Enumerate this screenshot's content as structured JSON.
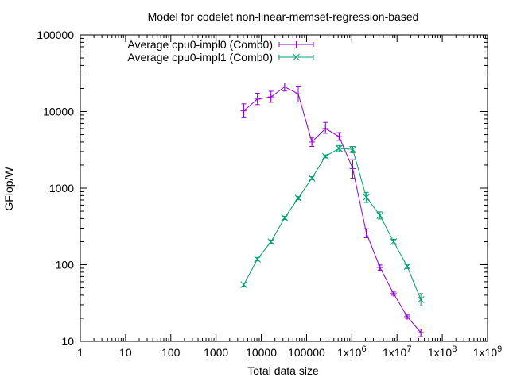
{
  "chart_data": {
    "type": "line",
    "title": "Model for codelet non-linear-memset-regression-based",
    "xlabel": "Total data size",
    "ylabel": "GFlop/W",
    "x_scale": "log",
    "y_scale": "log",
    "xlim": [
      1,
      1000000000
    ],
    "ylim": [
      10,
      100000
    ],
    "grid": false,
    "legend_position": "top-left",
    "x_ticks": [
      {
        "value": 1,
        "label": "1"
      },
      {
        "value": 10,
        "label": "10"
      },
      {
        "value": 100,
        "label": "100"
      },
      {
        "value": 1000,
        "label": "1000"
      },
      {
        "value": 10000,
        "label": "10000"
      },
      {
        "value": 100000,
        "label": "100000"
      },
      {
        "value": 1000000,
        "label": "1x10",
        "exp": "6"
      },
      {
        "value": 10000000,
        "label": "1x10",
        "exp": "7"
      },
      {
        "value": 100000000,
        "label": "1x10",
        "exp": "8"
      },
      {
        "value": 1000000000,
        "label": "1x10",
        "exp": "9"
      }
    ],
    "y_ticks": [
      {
        "value": 10,
        "label": "10"
      },
      {
        "value": 100,
        "label": "100"
      },
      {
        "value": 1000,
        "label": "1000"
      },
      {
        "value": 10000,
        "label": "10000"
      },
      {
        "value": 100000,
        "label": "100000"
      }
    ],
    "series": [
      {
        "name": "Average cpu0-impl0 (Comb0)",
        "color": "#9400d3",
        "marker": "plus",
        "points": [
          {
            "x": 4096,
            "y": 10200,
            "lo": 8300,
            "hi": 12600
          },
          {
            "x": 8192,
            "y": 14500,
            "lo": 12300,
            "hi": 17300
          },
          {
            "x": 16384,
            "y": 15500,
            "lo": 13200,
            "hi": 18400
          },
          {
            "x": 32768,
            "y": 21000,
            "lo": 18500,
            "hi": 23600
          },
          {
            "x": 65536,
            "y": 17000,
            "lo": 13300,
            "hi": 21500
          },
          {
            "x": 131072,
            "y": 4000,
            "lo": 3500,
            "hi": 4600
          },
          {
            "x": 262144,
            "y": 6000,
            "lo": 5200,
            "hi": 7200
          },
          {
            "x": 524288,
            "y": 4700,
            "lo": 4200,
            "hi": 5300
          },
          {
            "x": 1048576,
            "y": 1800,
            "lo": 1350,
            "hi": 2350
          },
          {
            "x": 2097152,
            "y": 260,
            "lo": 225,
            "hi": 295
          },
          {
            "x": 4194304,
            "y": 92,
            "lo": 85,
            "hi": 99
          },
          {
            "x": 8388608,
            "y": 42,
            "lo": 40,
            "hi": 44
          },
          {
            "x": 16777216,
            "y": 21,
            "lo": 20,
            "hi": 22
          },
          {
            "x": 33554432,
            "y": 13,
            "lo": 11.5,
            "hi": 14.5
          }
        ]
      },
      {
        "name": "Average cpu0-impl1 (Comb0)",
        "color": "#009e73",
        "marker": "cross",
        "points": [
          {
            "x": 4096,
            "y": 55,
            "lo": 52,
            "hi": 58
          },
          {
            "x": 8192,
            "y": 118,
            "lo": 112,
            "hi": 124
          },
          {
            "x": 16384,
            "y": 200,
            "lo": 190,
            "hi": 210
          },
          {
            "x": 32768,
            "y": 410,
            "lo": 390,
            "hi": 430
          },
          {
            "x": 65536,
            "y": 740,
            "lo": 705,
            "hi": 775
          },
          {
            "x": 131072,
            "y": 1350,
            "lo": 1290,
            "hi": 1410
          },
          {
            "x": 262144,
            "y": 2600,
            "lo": 2480,
            "hi": 2720
          },
          {
            "x": 524288,
            "y": 3300,
            "lo": 3000,
            "hi": 3600
          },
          {
            "x": 1048576,
            "y": 3200,
            "lo": 2900,
            "hi": 3500
          },
          {
            "x": 2097152,
            "y": 760,
            "lo": 650,
            "hi": 880
          },
          {
            "x": 4194304,
            "y": 440,
            "lo": 395,
            "hi": 490
          },
          {
            "x": 8388608,
            "y": 200,
            "lo": 185,
            "hi": 215
          },
          {
            "x": 16777216,
            "y": 95,
            "lo": 89,
            "hi": 101
          },
          {
            "x": 33554432,
            "y": 35,
            "lo": 29,
            "hi": 42
          }
        ]
      }
    ]
  }
}
